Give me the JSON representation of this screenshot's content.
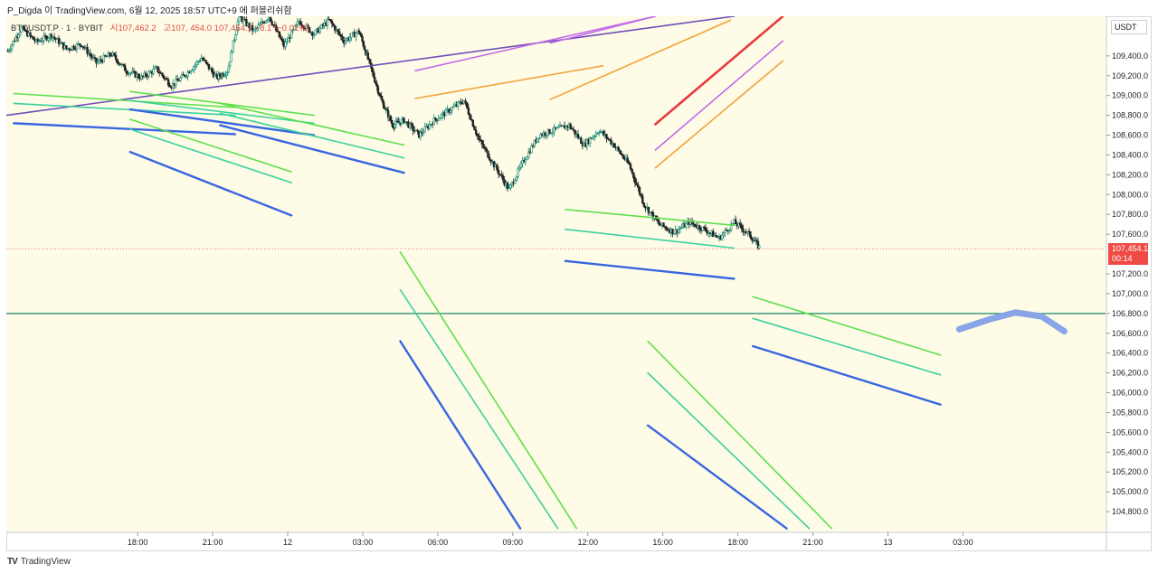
{
  "header": {
    "attribution": "P_Digda 이 TradingView.com, 6월 12, 2025 18:57 UTC+9 에 퍼블리쉬함"
  },
  "symbol_line": {
    "symbol": "BTCUSDT.P · 1 · BYBIT",
    "open": "시107,462.2",
    "high": "고107,",
    "close": "454.0",
    "last": "107,454.1",
    "change": "−8.1 (−0.01%)"
  },
  "unit_label": "USDT",
  "last_price": {
    "value": "107,454.1",
    "countdown": "00:14"
  },
  "footer": {
    "brand": "TradingView",
    "logo": "TV"
  },
  "colors": {
    "plot_bg": "#fefbe6",
    "bull": "#0b8c78",
    "bear": "#222222",
    "price_line": "#ef4b44",
    "horizontal_level": "#1a8a6b",
    "lime": "#5ee04d",
    "teal": "#3dd1a0",
    "blue": "#3766e0",
    "purple": "#6e4fb8",
    "violet": "#c46be8",
    "orange": "#f2a33a",
    "red": "#e8383d",
    "sketch": "#8aa4e8"
  },
  "chart_data": {
    "type": "candlestick",
    "title": "",
    "xlabel": "",
    "ylabel": "",
    "ylim": [
      104600,
      109800
    ],
    "yticks": [
      "109,400.0",
      "109,200.0",
      "109,000.0",
      "108,800.0",
      "108,600.0",
      "108,400.0",
      "108,200.0",
      "108,000.0",
      "107,800.0",
      "107,600.0",
      "107,200.0",
      "107,000.0",
      "106,800.0",
      "106,600.0",
      "106,400.0",
      "106,200.0",
      "106,000.0",
      "105,800.0",
      "105,600.0",
      "105,400.0",
      "105,200.0",
      "105,000.0",
      "104,800.0"
    ],
    "xlim": [
      -1.75,
      12.9
    ],
    "xticks": [
      {
        "label": "18:00",
        "x": 0
      },
      {
        "label": "21:00",
        "x": 1
      },
      {
        "label": "12",
        "x": 2
      },
      {
        "label": "03:00",
        "x": 3
      },
      {
        "label": "06:00",
        "x": 4
      },
      {
        "label": "09:00",
        "x": 5
      },
      {
        "label": "12:00",
        "x": 6
      },
      {
        "label": "15:00",
        "x": 7
      },
      {
        "label": "18:00",
        "x": 8
      },
      {
        "label": "21:00",
        "x": 9
      },
      {
        "label": "13",
        "x": 10
      },
      {
        "label": "03:00",
        "x": 11
      }
    ],
    "price_path": [
      [
        -1.73,
        109450
      ],
      [
        -1.55,
        109680
      ],
      [
        -1.35,
        109540
      ],
      [
        -1.15,
        109610
      ],
      [
        -0.95,
        109470
      ],
      [
        -0.75,
        109520
      ],
      [
        -0.55,
        109330
      ],
      [
        -0.35,
        109420
      ],
      [
        -0.15,
        109250
      ],
      [
        0.05,
        109180
      ],
      [
        0.25,
        109270
      ],
      [
        0.45,
        109100
      ],
      [
        0.65,
        109220
      ],
      [
        0.85,
        109380
      ],
      [
        1.05,
        109180
      ],
      [
        1.2,
        109250
      ],
      [
        1.35,
        109800
      ],
      [
        1.55,
        109650
      ],
      [
        1.75,
        109800
      ],
      [
        1.95,
        109500
      ],
      [
        2.15,
        109750
      ],
      [
        2.35,
        109620
      ],
      [
        2.55,
        109760
      ],
      [
        2.75,
        109550
      ],
      [
        2.95,
        109650
      ],
      [
        3.1,
        109300
      ],
      [
        3.25,
        108950
      ],
      [
        3.4,
        108700
      ],
      [
        3.55,
        108750
      ],
      [
        3.75,
        108600
      ],
      [
        3.95,
        108750
      ],
      [
        4.15,
        108850
      ],
      [
        4.35,
        108950
      ],
      [
        4.55,
        108550
      ],
      [
        4.75,
        108300
      ],
      [
        4.95,
        108050
      ],
      [
        5.15,
        108350
      ],
      [
        5.35,
        108600
      ],
      [
        5.55,
        108650
      ],
      [
        5.75,
        108700
      ],
      [
        5.95,
        108500
      ],
      [
        6.15,
        108650
      ],
      [
        6.35,
        108500
      ],
      [
        6.55,
        108300
      ],
      [
        6.75,
        107900
      ],
      [
        6.95,
        107700
      ],
      [
        7.15,
        107620
      ],
      [
        7.35,
        107720
      ],
      [
        7.55,
        107650
      ],
      [
        7.75,
        107560
      ],
      [
        7.95,
        107720
      ],
      [
        8.15,
        107600
      ],
      [
        8.3,
        107454
      ]
    ],
    "horizontal_levels": [
      106800
    ],
    "last_price_line": 107454.1,
    "trendlines": [
      {
        "color": "purple",
        "from": [
          -1.75,
          108800
        ],
        "to": [
          7.95,
          109800
        ]
      },
      {
        "color": "violet",
        "from": [
          3.7,
          109250
        ],
        "to": [
          6.9,
          109800
        ]
      },
      {
        "color": "violet",
        "from": [
          5.5,
          109530
        ],
        "to": [
          6.9,
          109800
        ]
      },
      {
        "color": "orange",
        "from": [
          3.7,
          108970
        ],
        "to": [
          6.2,
          109300
        ]
      },
      {
        "color": "orange",
        "from": [
          5.5,
          108960
        ],
        "to": [
          7.9,
          109760
        ]
      },
      {
        "color": "red",
        "from": [
          6.9,
          108710
        ],
        "to": [
          8.6,
          109800
        ]
      },
      {
        "color": "violet",
        "from": [
          6.9,
          108450
        ],
        "to": [
          8.6,
          109550
        ]
      },
      {
        "color": "orange",
        "from": [
          6.9,
          108270
        ],
        "to": [
          8.6,
          109350
        ]
      },
      {
        "color": "lime",
        "from": [
          -1.65,
          109020
        ],
        "to": [
          1.3,
          108880
        ]
      },
      {
        "color": "teal",
        "from": [
          -1.65,
          108920
        ],
        "to": [
          1.3,
          108800
        ]
      },
      {
        "color": "blue",
        "from": [
          -1.65,
          108720
        ],
        "to": [
          1.3,
          108610
        ]
      },
      {
        "color": "lime",
        "from": [
          -0.1,
          109040
        ],
        "to": [
          2.35,
          108800
        ]
      },
      {
        "color": "teal",
        "from": [
          -0.1,
          108950
        ],
        "to": [
          2.35,
          108720
        ]
      },
      {
        "color": "blue",
        "from": [
          -0.1,
          108860
        ],
        "to": [
          2.35,
          108600
        ]
      },
      {
        "color": "lime",
        "from": [
          1.1,
          108920
        ],
        "to": [
          3.55,
          108500
        ]
      },
      {
        "color": "teal",
        "from": [
          1.1,
          108820
        ],
        "to": [
          3.55,
          108370
        ]
      },
      {
        "color": "blue",
        "from": [
          1.1,
          108700
        ],
        "to": [
          3.55,
          108220
        ]
      },
      {
        "color": "lime",
        "from": [
          -0.1,
          108760
        ],
        "to": [
          2.05,
          108230
        ]
      },
      {
        "color": "teal",
        "from": [
          -0.1,
          108660
        ],
        "to": [
          2.05,
          108120
        ]
      },
      {
        "color": "blue",
        "from": [
          -0.1,
          108430
        ],
        "to": [
          2.05,
          107790
        ]
      },
      {
        "color": "lime",
        "from": [
          5.7,
          107850
        ],
        "to": [
          7.95,
          107690
        ]
      },
      {
        "color": "teal",
        "from": [
          5.7,
          107650
        ],
        "to": [
          7.95,
          107460
        ]
      },
      {
        "color": "blue",
        "from": [
          5.7,
          107330
        ],
        "to": [
          7.95,
          107150
        ]
      },
      {
        "color": "lime",
        "from": [
          3.5,
          107420
        ],
        "to": [
          5.85,
          104630
        ]
      },
      {
        "color": "teal",
        "from": [
          3.5,
          107040
        ],
        "to": [
          5.6,
          104630
        ]
      },
      {
        "color": "blue",
        "from": [
          3.5,
          106520
        ],
        "to": [
          5.1,
          104630
        ]
      },
      {
        "color": "lime",
        "from": [
          6.8,
          106520
        ],
        "to": [
          9.25,
          104630
        ]
      },
      {
        "color": "teal",
        "from": [
          6.8,
          106200
        ],
        "to": [
          8.95,
          104630
        ]
      },
      {
        "color": "blue",
        "from": [
          6.8,
          105670
        ],
        "to": [
          8.65,
          104630
        ]
      },
      {
        "color": "lime",
        "from": [
          8.2,
          106970
        ],
        "to": [
          10.7,
          106380
        ]
      },
      {
        "color": "teal",
        "from": [
          8.2,
          106750
        ],
        "to": [
          10.7,
          106180
        ]
      },
      {
        "color": "blue",
        "from": [
          8.2,
          106470
        ],
        "to": [
          10.7,
          105880
        ]
      }
    ],
    "sketch_arc": [
      [
        10.95,
        106640
      ],
      [
        11.35,
        106740
      ],
      [
        11.7,
        106810
      ],
      [
        12.05,
        106770
      ],
      [
        12.35,
        106620
      ]
    ]
  }
}
